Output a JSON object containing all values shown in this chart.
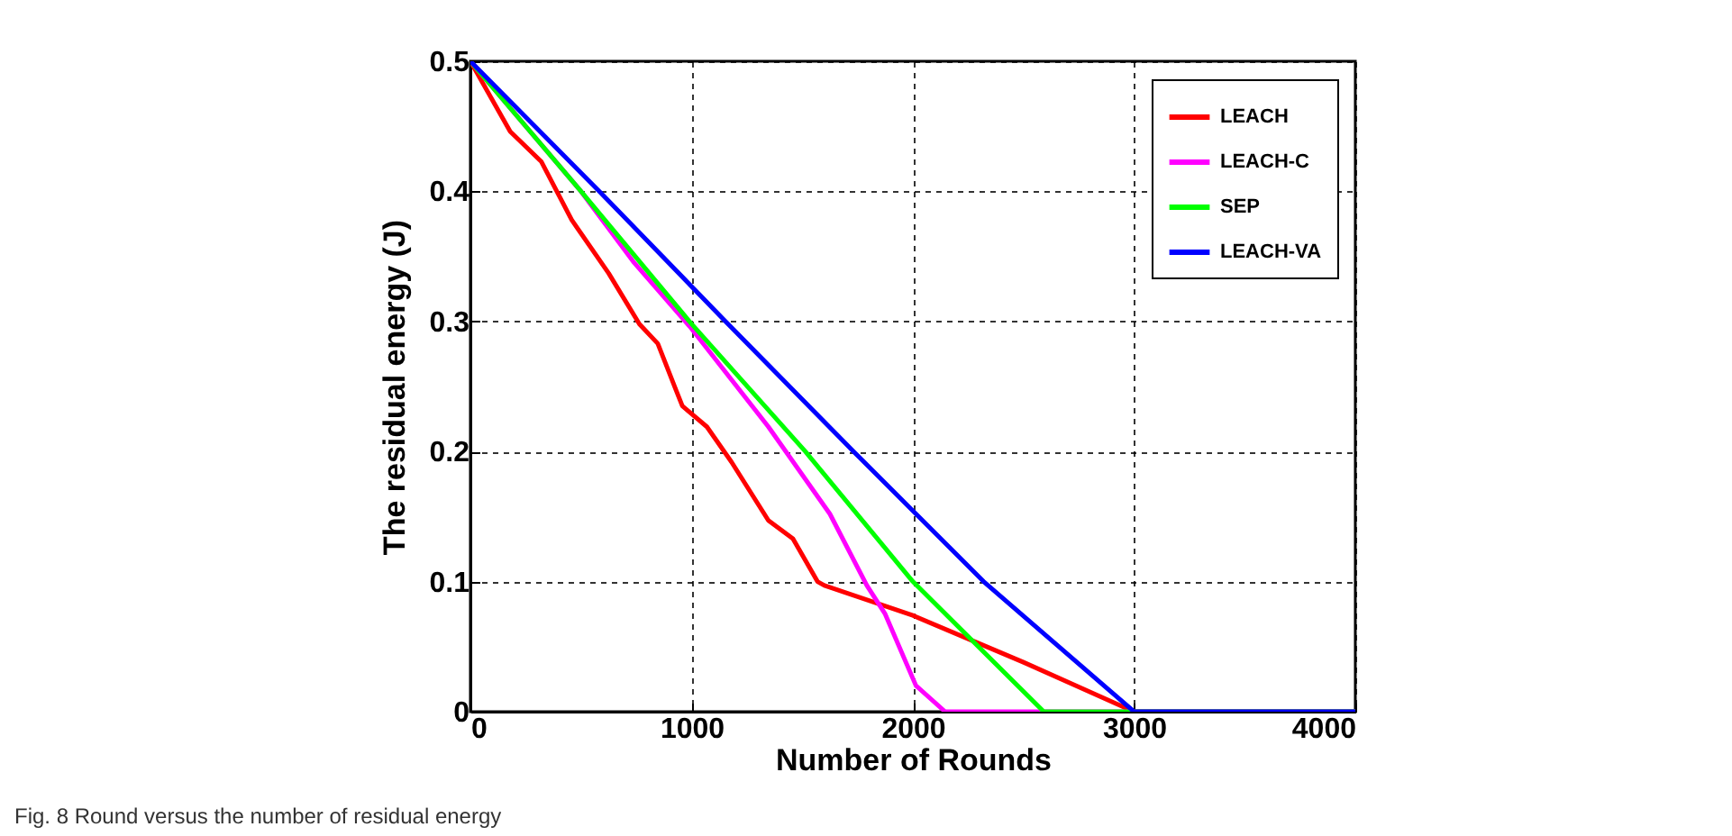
{
  "chart_data": {
    "type": "line",
    "xlabel": "Number of Rounds",
    "ylabel": "The residual energy (J)",
    "xlim": [
      0,
      4000
    ],
    "ylim": [
      0,
      0.5
    ],
    "xticks": [
      0,
      1000,
      2000,
      3000,
      4000
    ],
    "yticks": [
      0,
      0.1,
      0.2,
      0.3,
      0.4,
      0.5
    ],
    "grid": true,
    "legend": "top right",
    "line_style": "solid",
    "marker": "none",
    "annotations": [
      "Fig. 8 Round versus the number of residual energy"
    ],
    "series": [
      {
        "name": "LEACH",
        "color": "#ff0000",
        "x": [
          0,
          180,
          320,
          458,
          625,
          764,
          847,
          930,
          958,
          1069,
          1180,
          1347,
          1458,
          1569,
          1600,
          2000,
          2500,
          3000,
          4000
        ],
        "values": [
          0.5,
          0.446,
          0.423,
          0.378,
          0.337,
          0.298,
          0.283,
          0.247,
          0.235,
          0.219,
          0.192,
          0.147,
          0.133,
          0.1,
          0.097,
          0.074,
          0.038,
          0,
          0
        ]
      },
      {
        "name": "LEACH-C",
        "color": "#ff00ff",
        "x": [
          0,
          500,
          736,
          992,
          1347,
          1625,
          1792,
          1875,
          2014,
          2146,
          4000
        ],
        "values": [
          0.5,
          0.4,
          0.346,
          0.296,
          0.219,
          0.152,
          0.097,
          0.075,
          0.02,
          0,
          0
        ]
      },
      {
        "name": "SEP",
        "color": "#00ff00",
        "x": [
          0,
          500,
          1000,
          1514,
          2000,
          2592,
          4000
        ],
        "values": [
          0.5,
          0.4,
          0.298,
          0.2,
          0.1,
          0,
          0
        ]
      },
      {
        "name": "LEACH-VA",
        "color": "#0000ff",
        "x": [
          0,
          583,
          1153,
          1732,
          2320,
          3000,
          4000
        ],
        "values": [
          0.5,
          0.4,
          0.3,
          0.2,
          0.1,
          0,
          0
        ]
      }
    ]
  }
}
